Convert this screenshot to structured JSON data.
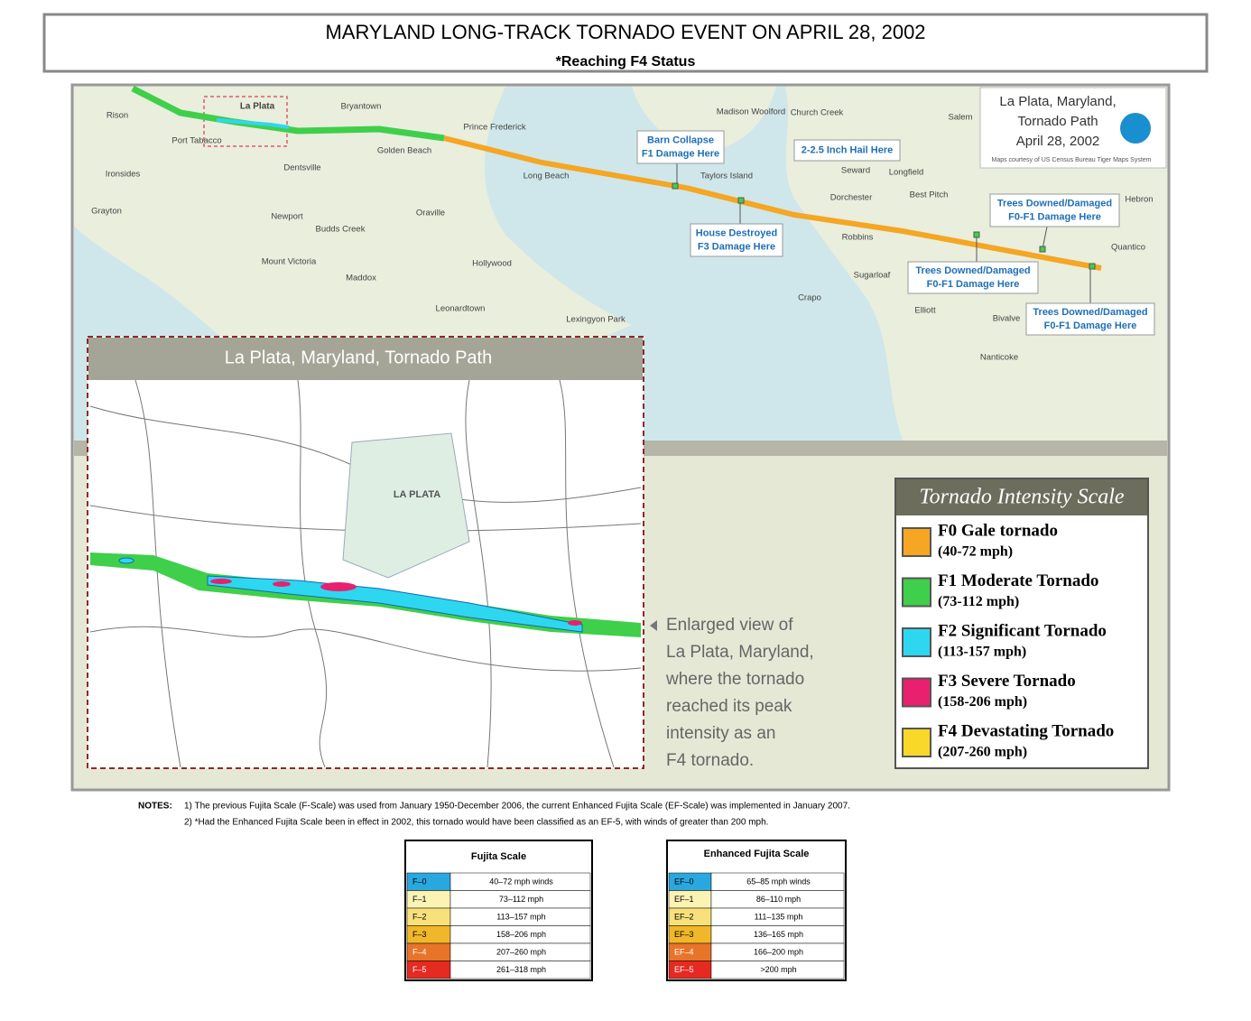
{
  "header": {
    "title": "MARYLAND LONG-TRACK TORNADO EVENT ON APRIL 28, 2002",
    "subtitle": "*Reaching F4 Status"
  },
  "map": {
    "title_lines": [
      "La Plata, Maryland,",
      "Tornado Path",
      "April 28, 2002"
    ],
    "credit": "Maps courtesy of US Census Bureau Tiger Maps System",
    "places": [
      "Rison",
      "Port Tabacco",
      "La Plata",
      "Bryantown",
      "Prince Frederick",
      "Madison Woolford",
      "Church Creek",
      "Salem",
      "Ironsides",
      "Dentsville",
      "Golden Beach",
      "Long Beach",
      "Taylors Island",
      "Seward",
      "Longfield",
      "Dorchester",
      "Best Pitch",
      "Hebron",
      "Grayton",
      "Newport",
      "Oraville",
      "Budds Creek",
      "Robbins",
      "Quantico",
      "Mount Victoria",
      "Maddox",
      "Hollywood",
      "Sugarloaf",
      "Crapo",
      "Leonardtown",
      "Lexingyon Park",
      "Elliott",
      "Bivalve",
      "Nanticoke"
    ],
    "callouts": [
      [
        "Barn Collapse",
        "F1 Damage Here"
      ],
      [
        "2-2.5 Inch Hail Here"
      ],
      [
        "House Destroyed",
        "F3 Damage Here"
      ],
      [
        "Trees Downed/Damaged",
        "F0-F1 Damage Here"
      ],
      [
        "Trees Downed/Damaged",
        "F0-F1 Damage Here"
      ],
      [
        "Trees Downed/Damaged",
        "F0-F1 Damage Here"
      ]
    ]
  },
  "inset": {
    "title": "La Plata, Maryland, Tornado Path",
    "town": "LA PLATA",
    "caption": [
      "Enlarged view of",
      "La Plata, Maryland,",
      "where the tornado",
      "reached its peak",
      "intensity as an",
      "F4 tornado."
    ]
  },
  "legend": {
    "title": "Tornado Intensity Scale",
    "items": [
      {
        "name": "F0 Gale tornado",
        "range": "(40-72 mph)",
        "color": "#f5a623"
      },
      {
        "name": "F1 Moderate Tornado",
        "range": "(73-112 mph)",
        "color": "#3fcf4a"
      },
      {
        "name": "F2 Significant Tornado",
        "range": "(113-157 mph)",
        "color": "#2ed7f0"
      },
      {
        "name": "F3 Severe Tornado",
        "range": "(158-206 mph)",
        "color": "#e8206d"
      },
      {
        "name": "F4 Devastating Tornado",
        "range": "(207-260 mph)",
        "color": "#f9d829"
      }
    ]
  },
  "notes": {
    "label": "NOTES:",
    "items": [
      "1) The previous Fujita Scale (F-Scale) was used from January 1950-December 2006, the current Enhanced Fujita Scale (EF-Scale) was implemented in January 2007.",
      "2) *Had the Enhanced Fujita Scale been in effect in 2002, this tornado would have been classified as an EF-5, with winds of greater than 200 mph."
    ]
  },
  "tables": [
    {
      "title": "Fujita Scale",
      "rows": [
        [
          "F–0",
          "40–72 mph winds"
        ],
        [
          "F–1",
          "73–112 mph"
        ],
        [
          "F–2",
          "113–157 mph"
        ],
        [
          "F–3",
          "158–206 mph"
        ],
        [
          "F–4",
          "207–260 mph"
        ],
        [
          "F–5",
          "261–318 mph"
        ]
      ],
      "colors": [
        "#29a8e0",
        "#fbf3b4",
        "#f8e17a",
        "#f1b72a",
        "#e8742a",
        "#e52a22"
      ]
    },
    {
      "title": "Enhanced Fujita Scale",
      "rows": [
        [
          "EF–0",
          "65–85 mph winds"
        ],
        [
          "EF–1",
          "86–110 mph"
        ],
        [
          "EF–2",
          "111–135 mph"
        ],
        [
          "EF–3",
          "136–165 mph"
        ],
        [
          "EF–4",
          "166–200 mph"
        ],
        [
          "EF–5",
          ">200 mph"
        ]
      ],
      "colors": [
        "#29a8e0",
        "#fbf3b4",
        "#f8e17a",
        "#f1b72a",
        "#e8742a",
        "#e52a22"
      ]
    }
  ]
}
